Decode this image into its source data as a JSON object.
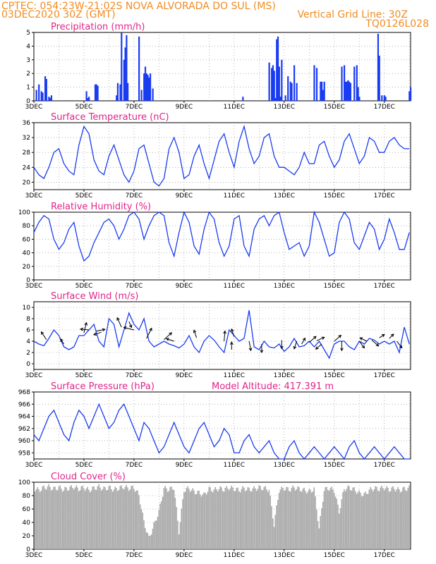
{
  "header": {
    "line1_left": "CPTEC: 054:23W-21:02S NOVA ALVORADA DO SUL (MS)",
    "line2_left": "03DEC2020 30Z (GMT)",
    "line2_right": "Vertical Grid Line: 30Z",
    "line3_right": "TQ0126L028"
  },
  "colors": {
    "line": "#1a3cf0",
    "bar": "#1a3cf0",
    "title": "#e0248a",
    "header": "#f08c24",
    "cloud": "#aaaaaa",
    "wind_arrow": "#000000"
  },
  "x_axis": {
    "labels": [
      "3DEC",
      "5DEC",
      "7DEC",
      "9DEC",
      "11DEC",
      "13DEC",
      "15DEC",
      "17DEC"
    ],
    "start_day": 3,
    "end_day": 18.05
  },
  "chart_data": [
    {
      "type": "bar",
      "title": "Precipitation (mm/h)",
      "ylim": [
        0,
        5
      ],
      "yticks": [
        "0",
        "1",
        "2",
        "3",
        "4",
        "5"
      ],
      "x": [
        3.1,
        3.2,
        3.3,
        3.35,
        3.45,
        3.5,
        3.6,
        3.65,
        3.7,
        5.1,
        5.15,
        5.2,
        5.45,
        5.5,
        5.55,
        6.3,
        6.35,
        6.45,
        6.5,
        6.6,
        6.65,
        6.7,
        6.75,
        7.2,
        7.3,
        7.4,
        7.45,
        7.5,
        7.55,
        7.6,
        7.65,
        7.75,
        11.35,
        12.4,
        12.5,
        12.55,
        12.6,
        12.65,
        12.7,
        12.75,
        12.8,
        12.85,
        12.9,
        13.05,
        13.15,
        13.25,
        13.3,
        13.4,
        13.5,
        14.2,
        14.3,
        14.45,
        14.5,
        14.55,
        14.6,
        15.3,
        15.4,
        15.45,
        15.5,
        15.55,
        15.6,
        15.65,
        15.8,
        15.9,
        15.95,
        16.0,
        16.75,
        16.8,
        16.9,
        17.0,
        17.05,
        18.0,
        18.05
      ],
      "values": [
        0.8,
        1.2,
        0.7,
        0.6,
        1.8,
        1.6,
        0.3,
        0.2,
        0.4,
        0.7,
        0.2,
        0.3,
        1.2,
        1.2,
        1.1,
        0.4,
        1.3,
        1.2,
        5.0,
        3.0,
        3.9,
        4.8,
        1.3,
        4.7,
        0.8,
        2.0,
        2.5,
        2.0,
        1.9,
        1.7,
        2.0,
        0.9,
        0.3,
        2.8,
        2.4,
        2.6,
        2.2,
        0.2,
        4.5,
        4.7,
        2.5,
        0.3,
        3.0,
        0.4,
        1.8,
        1.4,
        1.3,
        2.6,
        1.3,
        2.6,
        2.4,
        1.4,
        1.4,
        0.8,
        1.4,
        2.5,
        2.6,
        1.4,
        1.4,
        1.5,
        1.4,
        1.3,
        2.5,
        2.6,
        1.0,
        0.3,
        4.9,
        3.3,
        0.4,
        0.4,
        0.3,
        0.7,
        1.0
      ]
    },
    {
      "type": "line",
      "title": "Surface Temperature (nC)",
      "ylim": [
        18,
        36
      ],
      "yticks": [
        "20",
        "24",
        "28",
        "32",
        "36"
      ],
      "x": [
        3.0,
        3.2,
        3.4,
        3.6,
        3.8,
        4.0,
        4.2,
        4.4,
        4.6,
        4.8,
        5.0,
        5.2,
        5.4,
        5.6,
        5.8,
        6.0,
        6.2,
        6.4,
        6.6,
        6.8,
        7.0,
        7.2,
        7.4,
        7.6,
        7.8,
        8.0,
        8.2,
        8.4,
        8.6,
        8.8,
        9.0,
        9.2,
        9.4,
        9.6,
        9.8,
        10.0,
        10.2,
        10.4,
        10.6,
        10.8,
        11.0,
        11.2,
        11.4,
        11.6,
        11.8,
        12.0,
        12.2,
        12.4,
        12.6,
        12.8,
        13.0,
        13.2,
        13.4,
        13.6,
        13.8,
        14.0,
        14.2,
        14.4,
        14.6,
        14.8,
        15.0,
        15.2,
        15.4,
        15.6,
        15.8,
        16.0,
        16.2,
        16.4,
        16.6,
        16.8,
        17.0,
        17.2,
        17.4,
        17.6,
        17.8,
        18.0
      ],
      "values": [
        24,
        22,
        21,
        24,
        28,
        29,
        25,
        23,
        22,
        30,
        35,
        33,
        26,
        23,
        22,
        27,
        30,
        26,
        22,
        20,
        23,
        29,
        30,
        25,
        20,
        19,
        21,
        29,
        32,
        28,
        21,
        22,
        27,
        30,
        25,
        21,
        26,
        31,
        33,
        28,
        24,
        31,
        35,
        29,
        25,
        27,
        32,
        33,
        27,
        24,
        24,
        23,
        22,
        24,
        28,
        25,
        25,
        30,
        31,
        27,
        24,
        26,
        31,
        33,
        29,
        25,
        27,
        32,
        31,
        28,
        28,
        31,
        32,
        30,
        29,
        29
      ]
    },
    {
      "type": "line",
      "title": "Relative Humidity (%)",
      "ylim": [
        0,
        100
      ],
      "yticks": [
        "0",
        "20",
        "40",
        "60",
        "80",
        "100"
      ],
      "x": [
        3.0,
        3.2,
        3.4,
        3.6,
        3.8,
        4.0,
        4.2,
        4.4,
        4.6,
        4.8,
        5.0,
        5.2,
        5.4,
        5.6,
        5.8,
        6.0,
        6.2,
        6.4,
        6.6,
        6.8,
        7.0,
        7.2,
        7.4,
        7.6,
        7.8,
        8.0,
        8.2,
        8.4,
        8.6,
        8.8,
        9.0,
        9.2,
        9.4,
        9.6,
        9.8,
        10.0,
        10.2,
        10.4,
        10.6,
        10.8,
        11.0,
        11.2,
        11.4,
        11.6,
        11.8,
        12.0,
        12.2,
        12.4,
        12.6,
        12.8,
        13.0,
        13.2,
        13.4,
        13.6,
        13.8,
        14.0,
        14.2,
        14.4,
        14.6,
        14.8,
        15.0,
        15.2,
        15.4,
        15.6,
        15.8,
        16.0,
        16.2,
        16.4,
        16.6,
        16.8,
        17.0,
        17.2,
        17.4,
        17.6,
        17.8,
        18.0
      ],
      "values": [
        70,
        85,
        95,
        90,
        60,
        45,
        55,
        75,
        85,
        50,
        28,
        35,
        55,
        70,
        85,
        90,
        80,
        60,
        75,
        95,
        100,
        90,
        60,
        80,
        95,
        100,
        95,
        55,
        35,
        70,
        100,
        85,
        50,
        38,
        75,
        100,
        90,
        55,
        35,
        50,
        90,
        95,
        50,
        35,
        75,
        90,
        95,
        80,
        95,
        100,
        70,
        45,
        50,
        55,
        35,
        50,
        100,
        85,
        60,
        35,
        40,
        85,
        100,
        90,
        55,
        45,
        65,
        85,
        75,
        45,
        60,
        90,
        70,
        45,
        45,
        70
      ]
    },
    {
      "type": "line",
      "title": "Surface Wind (m/s)",
      "ylim": [
        -1,
        11
      ],
      "yticks": [
        "0",
        "2",
        "4",
        "6",
        "8",
        "10"
      ],
      "x": [
        3.0,
        3.2,
        3.4,
        3.6,
        3.8,
        4.0,
        4.2,
        4.4,
        4.6,
        4.8,
        5.0,
        5.2,
        5.4,
        5.6,
        5.8,
        6.0,
        6.2,
        6.4,
        6.6,
        6.8,
        7.0,
        7.2,
        7.4,
        7.6,
        7.8,
        8.0,
        8.2,
        8.4,
        8.6,
        8.8,
        9.0,
        9.2,
        9.4,
        9.6,
        9.8,
        10.0,
        10.2,
        10.4,
        10.6,
        10.8,
        11.0,
        11.2,
        11.4,
        11.6,
        11.8,
        12.0,
        12.2,
        12.4,
        12.6,
        12.8,
        13.0,
        13.2,
        13.4,
        13.6,
        13.8,
        14.0,
        14.2,
        14.4,
        14.6,
        14.8,
        15.0,
        15.2,
        15.4,
        15.6,
        15.8,
        16.0,
        16.2,
        16.4,
        16.6,
        16.8,
        17.0,
        17.2,
        17.4,
        17.6,
        17.8,
        18.0
      ],
      "values": [
        4,
        3.5,
        3.2,
        4.5,
        6,
        5,
        3,
        2.5,
        3,
        5,
        5,
        6,
        7,
        4,
        3,
        8,
        7,
        3,
        6,
        9,
        7,
        6,
        8,
        4,
        3,
        3.5,
        4,
        3.5,
        3.2,
        2.8,
        3.5,
        5,
        3,
        2,
        4,
        5,
        4.2,
        3,
        2,
        6,
        5,
        4,
        4.5,
        9.5,
        3,
        2.5,
        4,
        3,
        2.8,
        3.5,
        2.2,
        3,
        4.5,
        3,
        3.2,
        4,
        3,
        4,
        2.5,
        1,
        3.5,
        4,
        4,
        3,
        2.5,
        4,
        3.5,
        4.5,
        4.2,
        3.5,
        4,
        3.5,
        4,
        2,
        6.5,
        3.5
      ],
      "arrows": [
        [
          3.5,
          4.3,
          -0.6,
          0.9
        ],
        [
          4.2,
          3.5,
          -0.4,
          0.6
        ],
        [
          5.0,
          5.5,
          0.3,
          1.2
        ],
        [
          5.2,
          6.0,
          -1.0,
          0.1
        ],
        [
          5.5,
          5.8,
          1.0,
          0.2
        ],
        [
          5.7,
          5.6,
          -0.9,
          -0.3
        ],
        [
          6.5,
          6.5,
          -0.5,
          1.1
        ],
        [
          6.8,
          7.5,
          0.3,
          -0.7
        ],
        [
          7.0,
          6.0,
          -1.2,
          0.3
        ],
        [
          7.5,
          4.5,
          0.6,
          1.2
        ],
        [
          8.2,
          4.3,
          0.9,
          0.8
        ],
        [
          8.6,
          4.0,
          -0.9,
          0.3
        ],
        [
          9.5,
          4.6,
          -0.3,
          0.9
        ],
        [
          10.6,
          4.0,
          0.1,
          1.2
        ],
        [
          10.9,
          2.5,
          0.0,
          0.9
        ],
        [
          11.0,
          4.8,
          -0.3,
          0.9
        ],
        [
          11.6,
          4.0,
          0.2,
          -1.1
        ],
        [
          12.1,
          3.5,
          0.0,
          -1.0
        ],
        [
          12.9,
          4.2,
          0.0,
          -1.0
        ],
        [
          13.5,
          4.0,
          -0.3,
          -0.9
        ],
        [
          13.7,
          3.5,
          0.4,
          0.7
        ],
        [
          14.0,
          3.8,
          0.8,
          0.7
        ],
        [
          14.3,
          4.1,
          0.9,
          0.4
        ],
        [
          14.5,
          3.5,
          -0.7,
          -0.6
        ],
        [
          15.0,
          4.0,
          0.8,
          0.7
        ],
        [
          15.3,
          4.0,
          0.0,
          -1.1
        ],
        [
          16.0,
          4.0,
          0.6,
          -0.8
        ],
        [
          16.3,
          4.0,
          -0.8,
          0.4
        ],
        [
          16.5,
          4.2,
          0.8,
          -0.7
        ],
        [
          16.8,
          4.6,
          0.6,
          0.4
        ],
        [
          17.2,
          4.5,
          0.5,
          0.5
        ],
        [
          17.5,
          4.0,
          0.6,
          -0.8
        ]
      ]
    },
    {
      "type": "line",
      "title": "Surface Pressure (hPa)",
      "annotation": "Model Altitude: 417.391 m",
      "ylim": [
        957,
        968
      ],
      "yticks": [
        "958",
        "960",
        "962",
        "964",
        "966",
        "968"
      ],
      "x": [
        3.0,
        3.2,
        3.4,
        3.6,
        3.8,
        4.0,
        4.2,
        4.4,
        4.6,
        4.8,
        5.0,
        5.2,
        5.4,
        5.6,
        5.8,
        6.0,
        6.2,
        6.4,
        6.6,
        6.8,
        7.0,
        7.2,
        7.4,
        7.6,
        7.8,
        8.0,
        8.2,
        8.4,
        8.6,
        8.8,
        9.0,
        9.2,
        9.4,
        9.6,
        9.8,
        10.0,
        10.2,
        10.4,
        10.6,
        10.8,
        11.0,
        11.2,
        11.4,
        11.6,
        11.8,
        12.0,
        12.2,
        12.4,
        12.6,
        12.8,
        13.0,
        13.2,
        13.4,
        13.6,
        13.8,
        14.0,
        14.2,
        14.4,
        14.6,
        14.8,
        15.0,
        15.2,
        15.4,
        15.6,
        15.8,
        16.0,
        16.2,
        16.4,
        16.6,
        16.8,
        17.0,
        17.2,
        17.4,
        17.6,
        17.8,
        18.0
      ],
      "values": [
        961,
        960,
        962,
        964,
        965,
        963,
        961,
        960,
        963,
        965,
        964,
        962,
        964,
        966,
        964,
        962,
        963,
        965,
        966,
        964,
        962,
        960,
        963,
        962,
        960,
        958,
        959,
        961,
        963,
        961,
        959,
        958,
        960,
        962,
        963,
        961,
        959,
        960,
        962,
        961,
        958,
        958,
        960,
        961,
        959,
        958,
        959,
        960,
        958,
        957,
        957,
        959,
        960,
        958,
        957,
        958,
        959,
        958,
        957,
        958,
        959,
        958,
        957,
        959,
        960,
        958,
        957,
        958,
        959,
        958,
        957,
        958,
        959,
        958,
        957,
        957
      ]
    },
    {
      "type": "area",
      "title": "Cloud Cover (%)",
      "ylim": [
        0,
        100
      ],
      "yticks": [
        "0",
        "20",
        "40",
        "60",
        "80",
        "100"
      ],
      "x": [
        3.0,
        3.2,
        3.4,
        3.6,
        3.8,
        4.0,
        4.2,
        4.4,
        4.6,
        4.8,
        5.0,
        5.2,
        5.4,
        5.6,
        5.8,
        6.0,
        6.2,
        6.4,
        6.6,
        6.8,
        7.0,
        7.2,
        7.4,
        7.6,
        7.8,
        8.0,
        8.2,
        8.4,
        8.6,
        8.8,
        9.0,
        9.2,
        9.4,
        9.6,
        9.8,
        10.0,
        10.2,
        10.4,
        10.6,
        10.8,
        11.0,
        11.2,
        11.4,
        11.6,
        11.8,
        12.0,
        12.2,
        12.4,
        12.6,
        12.8,
        13.0,
        13.2,
        13.4,
        13.6,
        13.8,
        14.0,
        14.2,
        14.4,
        14.6,
        14.8,
        15.0,
        15.2,
        15.4,
        15.6,
        15.8,
        16.0,
        16.2,
        16.4,
        16.6,
        16.8,
        17.0,
        17.2,
        17.4,
        17.6,
        17.8,
        18.0
      ],
      "values": [
        95,
        92,
        96,
        97,
        94,
        96,
        93,
        95,
        97,
        94,
        96,
        92,
        95,
        97,
        94,
        96,
        93,
        95,
        97,
        95,
        96,
        85,
        45,
        20,
        40,
        60,
        95,
        93,
        96,
        30,
        92,
        95,
        90,
        88,
        85,
        94,
        92,
        95,
        93,
        96,
        94,
        92,
        95,
        93,
        94,
        96,
        95,
        93,
        40,
        92,
        95,
        93,
        96,
        94,
        92,
        90,
        94,
        35,
        93,
        95,
        92,
        60,
        94,
        96,
        93,
        88,
        85,
        92,
        95,
        94,
        96,
        93,
        95,
        92,
        94,
        95
      ]
    }
  ]
}
